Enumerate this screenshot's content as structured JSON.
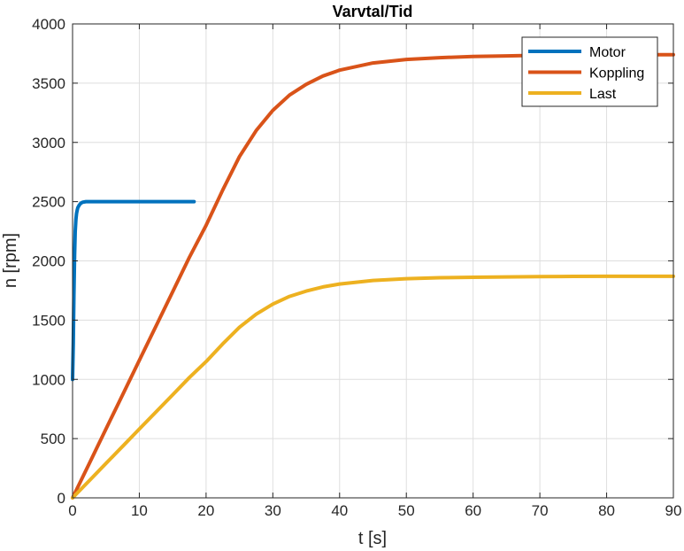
{
  "chart_data": {
    "type": "line",
    "title": "Varvtal/Tid",
    "xlabel": "t [s]",
    "ylabel": "n [rpm]",
    "xlim": [
      0,
      90
    ],
    "ylim": [
      0,
      4000
    ],
    "xticks": [
      0,
      10,
      20,
      30,
      40,
      50,
      60,
      70,
      80,
      90
    ],
    "yticks": [
      0,
      500,
      1000,
      1500,
      2000,
      2500,
      3000,
      3500,
      4000
    ],
    "grid": true,
    "legend_position": "top-right",
    "series": [
      {
        "name": "Motor",
        "color": "#0072BD",
        "x": [
          0,
          0.1,
          0.2,
          0.3,
          0.4,
          0.5,
          0.6,
          0.7,
          0.8,
          1.0,
          1.2,
          1.5,
          2.0,
          3.0,
          5.0,
          10.0,
          15.0,
          18.2
        ],
        "y": [
          1000,
          1300,
          1700,
          2050,
          2250,
          2350,
          2400,
          2430,
          2450,
          2470,
          2485,
          2495,
          2500,
          2500,
          2500,
          2500,
          2500,
          2500
        ]
      },
      {
        "name": "Koppling",
        "color": "#D95319",
        "x": [
          0,
          2.5,
          5,
          7.5,
          10,
          12.5,
          15,
          17.5,
          20,
          22.5,
          25,
          27.5,
          30,
          32.5,
          35,
          37.5,
          40,
          45,
          50,
          55,
          60,
          65,
          70,
          75,
          80,
          85,
          90
        ],
        "y": [
          0,
          290,
          580,
          870,
          1160,
          1450,
          1740,
          2030,
          2300,
          2600,
          2880,
          3100,
          3270,
          3400,
          3490,
          3560,
          3610,
          3670,
          3700,
          3715,
          3725,
          3730,
          3735,
          3738,
          3740,
          3740,
          3740
        ]
      },
      {
        "name": "Last",
        "color": "#EDB120",
        "x": [
          0,
          2.5,
          5,
          7.5,
          10,
          12.5,
          15,
          17.5,
          20,
          22.5,
          25,
          27.5,
          30,
          32.5,
          35,
          37.5,
          40,
          45,
          50,
          55,
          60,
          65,
          70,
          75,
          80,
          85,
          90
        ],
        "y": [
          0,
          145,
          290,
          435,
          580,
          725,
          870,
          1015,
          1150,
          1300,
          1440,
          1550,
          1635,
          1700,
          1745,
          1780,
          1805,
          1835,
          1850,
          1858,
          1862,
          1865,
          1867,
          1869,
          1870,
          1870,
          1870
        ]
      }
    ]
  }
}
